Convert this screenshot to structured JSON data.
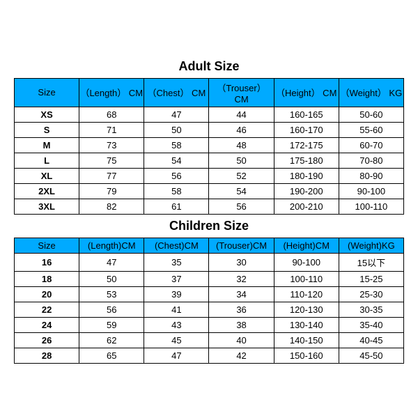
{
  "colors": {
    "header_bg": "#00aaff",
    "border": "#000000",
    "text": "#000000",
    "bg": "#ffffff"
  },
  "adult": {
    "title": "Adult Size",
    "columns": [
      "Size",
      "（Length） CM",
      "（Chest） CM",
      "（Trouser） CM",
      "（Height） CM",
      "（Weight） KG"
    ],
    "rows": [
      [
        "XS",
        "68",
        "47",
        "44",
        "160-165",
        "50-60"
      ],
      [
        "S",
        "71",
        "50",
        "46",
        "160-170",
        "55-60"
      ],
      [
        "M",
        "73",
        "58",
        "48",
        "172-175",
        "60-70"
      ],
      [
        "L",
        "75",
        "54",
        "50",
        "175-180",
        "70-80"
      ],
      [
        "XL",
        "77",
        "56",
        "52",
        "180-190",
        "80-90"
      ],
      [
        "2XL",
        "79",
        "58",
        "54",
        "190-200",
        "90-100"
      ],
      [
        "3XL",
        "82",
        "61",
        "56",
        "200-210",
        "100-110"
      ]
    ]
  },
  "children": {
    "title": "Children Size",
    "columns": [
      "Size",
      "(Length)CM",
      "(Chest)CM",
      "(Trouser)CM",
      "(Height)CM",
      "(Weight)KG"
    ],
    "rows": [
      [
        "16",
        "47",
        "35",
        "30",
        "90-100",
        "15以下"
      ],
      [
        "18",
        "50",
        "37",
        "32",
        "100-110",
        "15-25"
      ],
      [
        "20",
        "53",
        "39",
        "34",
        "110-120",
        "25-30"
      ],
      [
        "22",
        "56",
        "41",
        "36",
        "120-130",
        "30-35"
      ],
      [
        "24",
        "59",
        "43",
        "38",
        "130-140",
        "35-40"
      ],
      [
        "26",
        "62",
        "45",
        "40",
        "140-150",
        "40-45"
      ],
      [
        "28",
        "65",
        "47",
        "42",
        "150-160",
        "45-50"
      ]
    ]
  }
}
